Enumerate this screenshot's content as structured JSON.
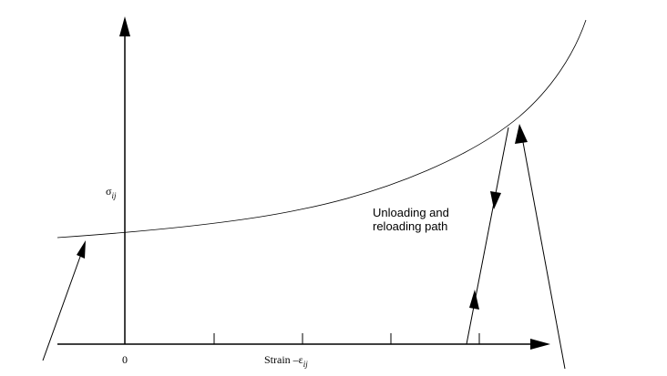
{
  "axes": {
    "y_label": "σ",
    "y_label_sub": "ij",
    "origin": "0",
    "x_label": "Strain –ε",
    "x_label_sub": "ij"
  },
  "annotation": {
    "lines": [
      "Unloading and",
      "reloading path"
    ]
  }
}
